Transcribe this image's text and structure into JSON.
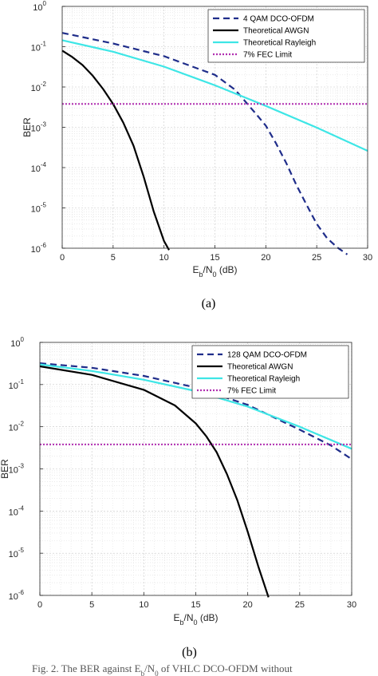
{
  "chart_data": [
    {
      "type": "line",
      "panel_label": "(a)",
      "xlabel": "E_b/N_0 (dB)",
      "ylabel": "BER",
      "xlim": [
        0,
        30
      ],
      "ylim": [
        1e-06,
        1
      ],
      "yscale": "log",
      "grid": true,
      "legend": "top-right",
      "x_ticks": [
        "0",
        "5",
        "10",
        "15",
        "20",
        "25",
        "30"
      ],
      "y_ticks": [
        {
          "base": "10",
          "exp": "0"
        },
        {
          "base": "10",
          "exp": "-1"
        },
        {
          "base": "10",
          "exp": "-2"
        },
        {
          "base": "10",
          "exp": "-3"
        },
        {
          "base": "10",
          "exp": "-4"
        },
        {
          "base": "10",
          "exp": "-5"
        },
        {
          "base": "10",
          "exp": "-6"
        }
      ],
      "series": [
        {
          "name": "4 QAM DCO-OFDM",
          "color": "#1f2d8a",
          "style": "dashed",
          "x": [
            0,
            5,
            10,
            15,
            17,
            19,
            20,
            21,
            22,
            23,
            24,
            25,
            26,
            27,
            28
          ],
          "y": [
            0.22,
            0.12,
            0.058,
            0.02,
            0.0085,
            0.0022,
            0.0011,
            0.0004,
            0.00013,
            3.7e-05,
            1.2e-05,
            4e-06,
            1.8e-06,
            1.05e-06,
            7e-07
          ]
        },
        {
          "name": "Theoretical AWGN",
          "color": "#000000",
          "style": "solid",
          "x": [
            0,
            1,
            2,
            3,
            4,
            5,
            6,
            7,
            8,
            9,
            10,
            10.5
          ],
          "y": [
            0.08,
            0.055,
            0.035,
            0.019,
            0.009,
            0.0038,
            0.0013,
            0.00035,
            6e-05,
            8e-06,
            1.5e-06,
            9e-07
          ]
        },
        {
          "name": "Theoretical Rayleigh",
          "color": "#3ee6e6",
          "style": "solid",
          "x": [
            0,
            5,
            10,
            15,
            20,
            25,
            30
          ],
          "y": [
            0.145,
            0.075,
            0.032,
            0.011,
            0.0034,
            0.00098,
            0.00026
          ]
        },
        {
          "name": "7% FEC Limit",
          "color": "#b12fb1",
          "style": "dotted",
          "x": [
            0,
            30
          ],
          "y": [
            0.0038,
            0.0038
          ]
        }
      ]
    },
    {
      "type": "line",
      "panel_label": "(b)",
      "xlabel": "E_b/N_0 (dB)",
      "ylabel": "BER",
      "xlim": [
        0,
        30
      ],
      "ylim": [
        1e-06,
        1
      ],
      "yscale": "log",
      "grid": true,
      "legend": "top-right",
      "x_ticks": [
        "0",
        "5",
        "10",
        "15",
        "20",
        "25",
        "30"
      ],
      "y_ticks": [
        {
          "base": "10",
          "exp": "0"
        },
        {
          "base": "10",
          "exp": "-1"
        },
        {
          "base": "10",
          "exp": "-2"
        },
        {
          "base": "10",
          "exp": "-3"
        },
        {
          "base": "10",
          "exp": "-4"
        },
        {
          "base": "10",
          "exp": "-5"
        },
        {
          "base": "10",
          "exp": "-6"
        }
      ],
      "series": [
        {
          "name": "128 QAM DCO-OFDM",
          "color": "#1f2d8a",
          "style": "dashed",
          "x": [
            0,
            5,
            10,
            15,
            20,
            25,
            28,
            30
          ],
          "y": [
            0.32,
            0.25,
            0.16,
            0.085,
            0.033,
            0.0085,
            0.0036,
            0.0017
          ]
        },
        {
          "name": "Theoretical AWGN",
          "color": "#000000",
          "style": "solid",
          "x": [
            0,
            5,
            10,
            13,
            15,
            16,
            17,
            18,
            19,
            20,
            21,
            22
          ],
          "y": [
            0.27,
            0.17,
            0.075,
            0.032,
            0.012,
            0.006,
            0.0025,
            0.00075,
            0.00018,
            3.2e-05,
            5e-06,
            9e-07
          ]
        },
        {
          "name": "Theoretical Rayleigh",
          "color": "#3ee6e6",
          "style": "solid",
          "x": [
            0,
            5,
            10,
            15,
            20,
            25,
            30
          ],
          "y": [
            0.3,
            0.21,
            0.13,
            0.07,
            0.03,
            0.01,
            0.003
          ]
        },
        {
          "name": "7% FEC Limit",
          "color": "#b12fb1",
          "style": "dotted",
          "x": [
            0,
            30
          ],
          "y": [
            0.0038,
            0.0038
          ]
        }
      ]
    }
  ],
  "footer_caption": "Fig. 2. The BER against E_b/N_0 of VHLC DCO-OFDM without"
}
